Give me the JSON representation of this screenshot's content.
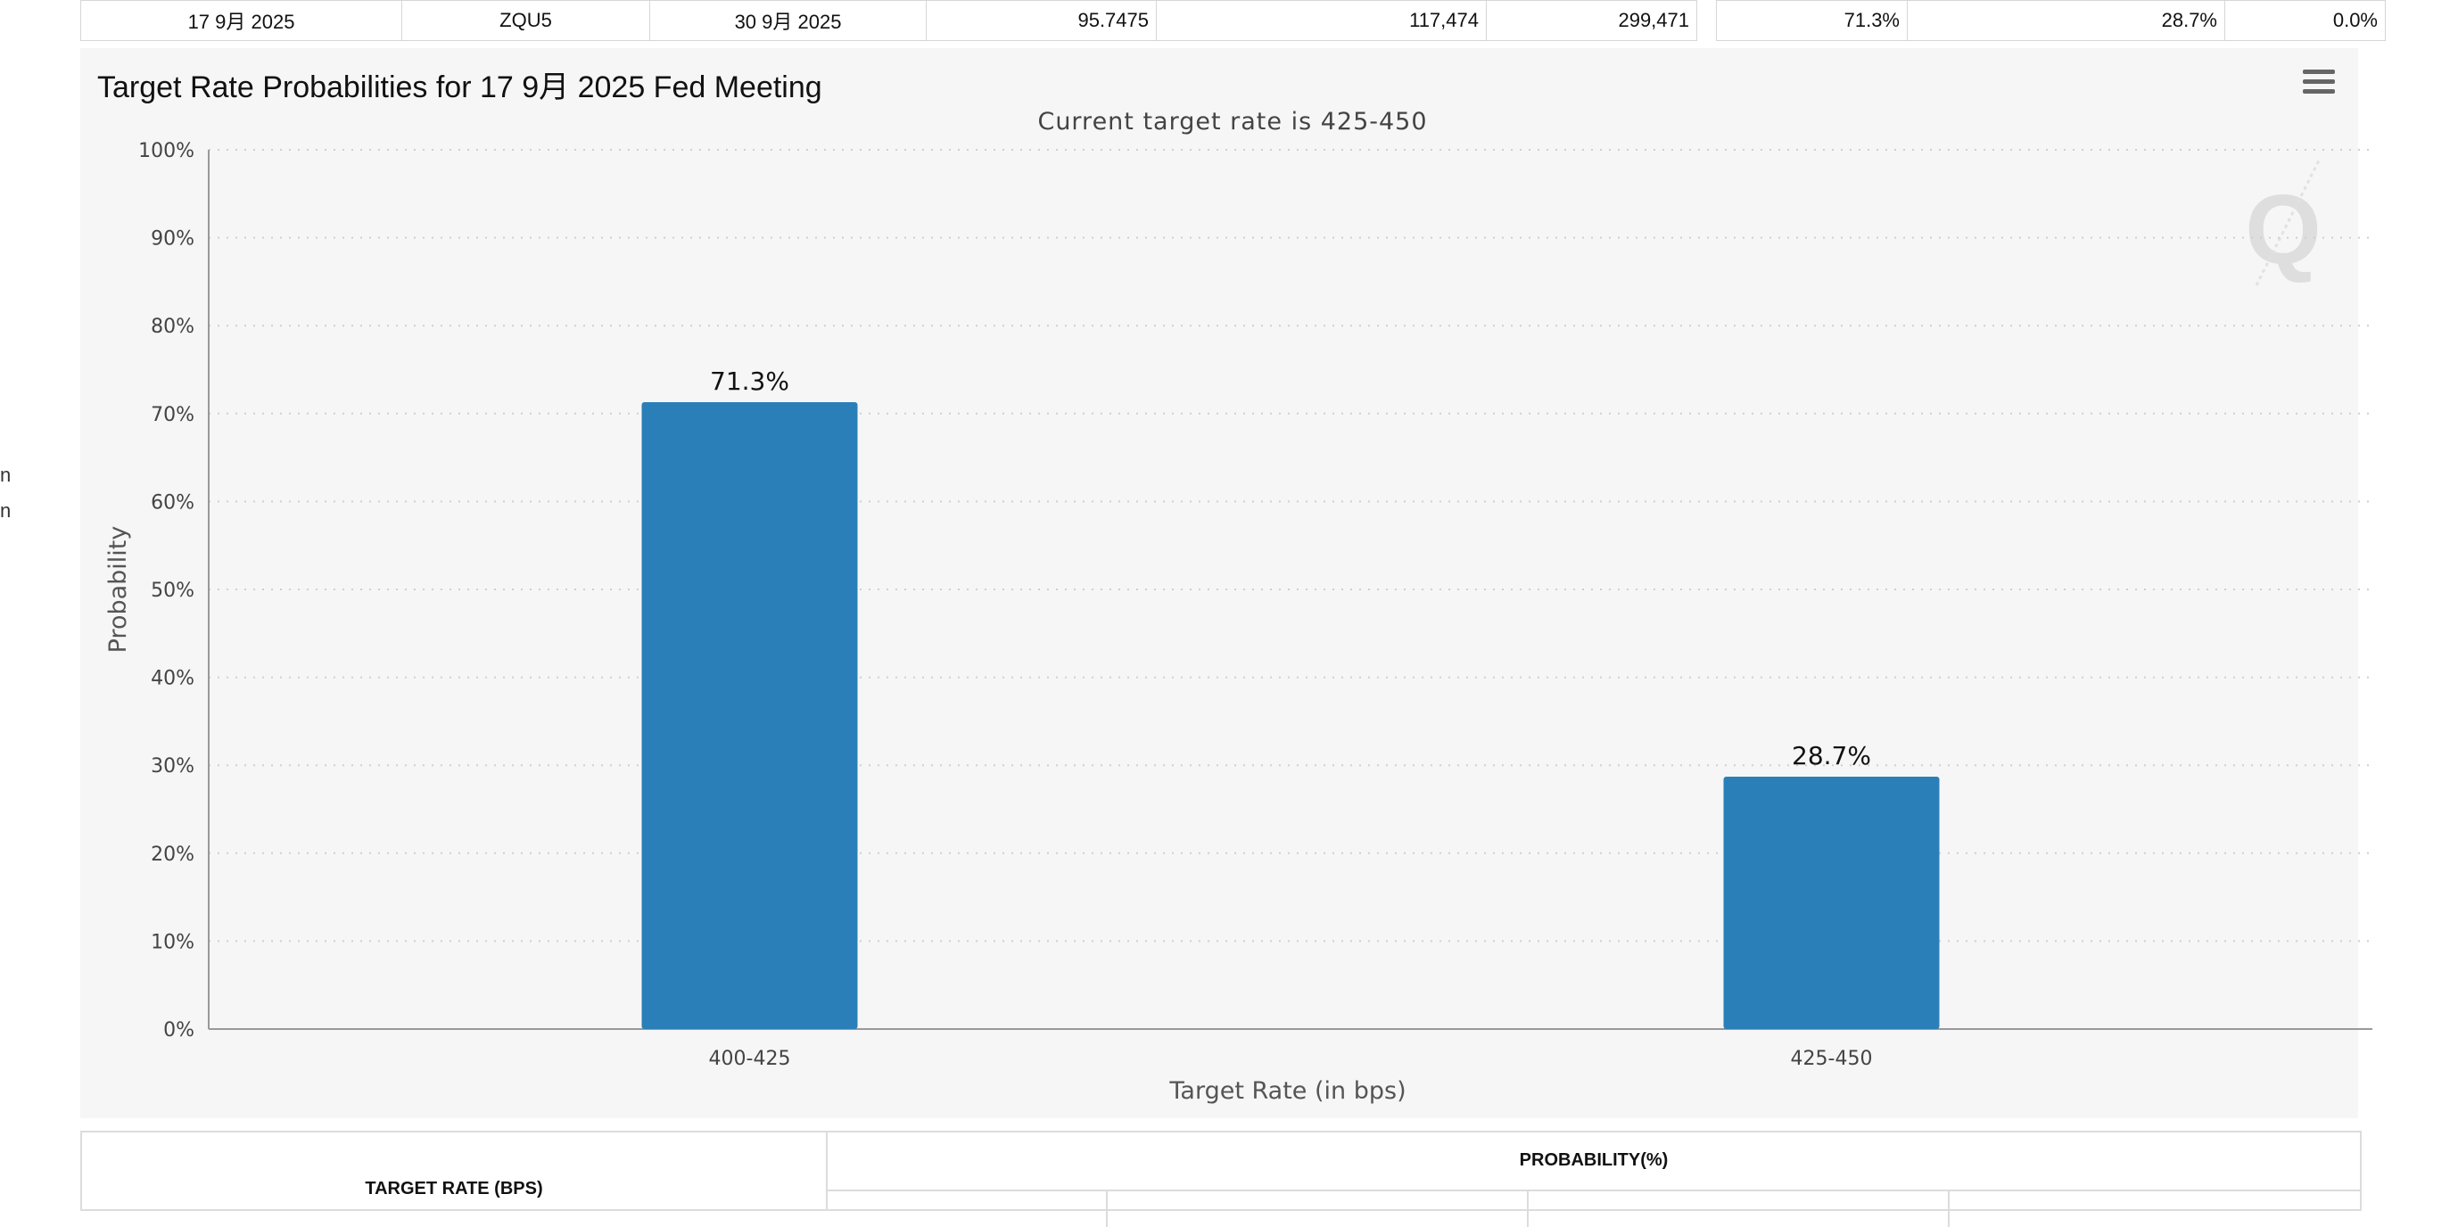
{
  "summary_row": {
    "meeting_date": "17 9月 2025",
    "contract": "ZQU5",
    "expires": "30 9月 2025",
    "mid_price": "95.7475",
    "prior_volume": "117,474",
    "prior_oi": "299,471",
    "prob_ease": "71.3%",
    "prob_no_change": "28.7%",
    "prob_hike": "0.0%"
  },
  "left_edge": {
    "line1": "n",
    "line2": "n"
  },
  "chart": {
    "title": "Target Rate Probabilities for 17 9月 2025 Fed Meeting",
    "menu_icon": "hamburger-menu-icon",
    "watermark_icon": "q-logo-icon",
    "bar_color": "#2a7fb8"
  },
  "chart_data": {
    "type": "bar",
    "title": "Target Rate Probabilities for 17 9月 2025 Fed Meeting",
    "subtitle": "Current target rate is 425-450",
    "xlabel": "Target Rate (in bps)",
    "ylabel": "Probability",
    "categories": [
      "400-425",
      "425-450"
    ],
    "values": [
      71.3,
      28.7
    ],
    "data_labels": [
      "71.3%",
      "28.7%"
    ],
    "ylim": [
      0,
      100
    ],
    "yticks": [
      "0%",
      "10%",
      "20%",
      "30%",
      "40%",
      "50%",
      "60%",
      "70%",
      "80%",
      "90%",
      "100%"
    ],
    "grid": true,
    "legend": "none"
  },
  "bottom_table": {
    "left_header": "TARGET RATE (BPS)",
    "right_header": "PROBABILITY(%)"
  }
}
